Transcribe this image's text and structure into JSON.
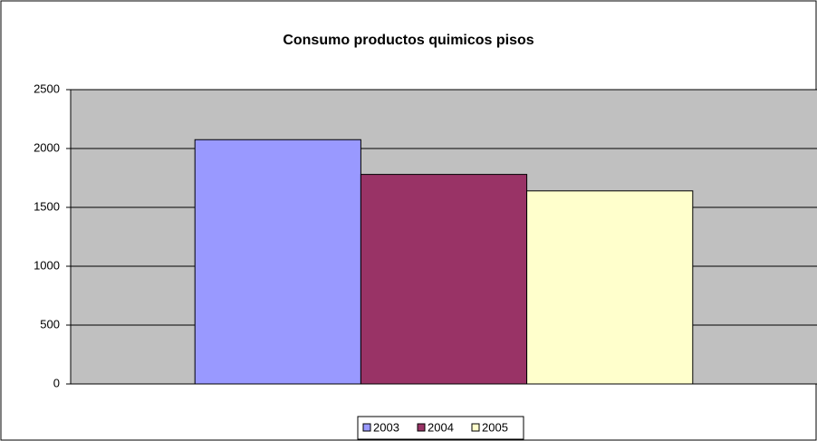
{
  "chart_data": {
    "type": "bar",
    "title": "Consumo productos quimicos pisos",
    "categories": [
      null
    ],
    "series": [
      {
        "name": "2003",
        "color": "#9999ff",
        "values": [
          2075
        ]
      },
      {
        "name": "2004",
        "color": "#993366",
        "values": [
          1780
        ]
      },
      {
        "name": "2005",
        "color": "#ffffcc",
        "values": [
          1640
        ]
      }
    ],
    "ylim": [
      0,
      2500
    ],
    "yticks": [
      0,
      500,
      1000,
      1500,
      2000,
      2500
    ],
    "grid": true,
    "legend": "bottom"
  }
}
